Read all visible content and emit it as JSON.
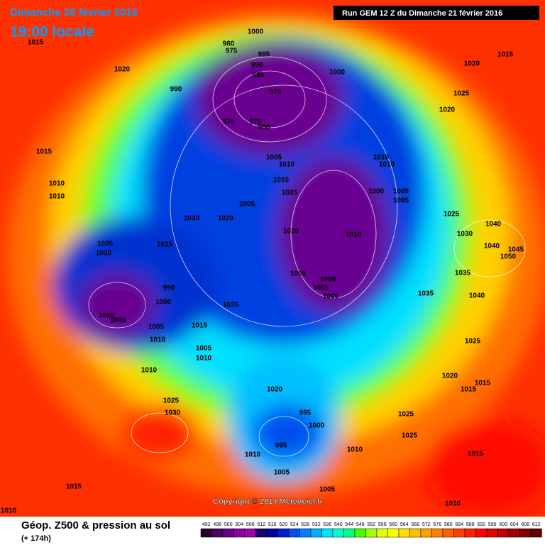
{
  "header": {
    "date": "Dimanche 28 février 2016",
    "time": "19:00 locale",
    "run": "Run GEM 12 Z du Dimanche 21 février 2016"
  },
  "copyright": "Copyright © 2014 Meteociel.fr",
  "footer": {
    "title": "Géop. Z500 & pression au sol",
    "lead": "(+ 174h)"
  },
  "scale": {
    "values": [
      492,
      496,
      500,
      504,
      508,
      512,
      516,
      520,
      524,
      528,
      532,
      536,
      540,
      544,
      548,
      552,
      556,
      560,
      564,
      568,
      572,
      576,
      580,
      584,
      588,
      592,
      596,
      600,
      604,
      608,
      612
    ],
    "colors": [
      "#2a0030",
      "#4b0060",
      "#6a0080",
      "#8a00a0",
      "#a000b0",
      "#1a0070",
      "#0000a0",
      "#0020d0",
      "#0050f0",
      "#0080ff",
      "#00b0ff",
      "#00e0ff",
      "#00ffd0",
      "#00ff80",
      "#40ff00",
      "#a0ff00",
      "#e0ff00",
      "#ffff00",
      "#ffe000",
      "#ffc000",
      "#ffa000",
      "#ff8000",
      "#ff6000",
      "#ff4000",
      "#ff2000",
      "#ff0000",
      "#e00000",
      "#c00000",
      "#a00000",
      "#800000",
      "#600000"
    ]
  },
  "isobar_labels": [
    1015,
    1000,
    980,
    975,
    995,
    990,
    985,
    1000,
    975,
    990,
    970,
    975,
    980,
    1020,
    1015,
    1020,
    1025,
    1020,
    1015,
    1005,
    1010,
    1010,
    1010,
    1010,
    1010,
    1015,
    1025,
    1000,
    1005,
    1005,
    1005,
    1020,
    1030,
    1025,
    1020,
    1010,
    1030,
    1040,
    1035,
    1030,
    1025,
    1040,
    1045,
    1050,
    1005,
    1000,
    1035,
    990,
    1005,
    1000,
    1035,
    1040,
    1000,
    1000,
    1005,
    1005,
    1015,
    1035,
    1010,
    1025,
    1005,
    1010,
    1010,
    1020,
    1015,
    1015,
    1020,
    1025,
    1030,
    995,
    1025,
    1000,
    1025,
    995,
    1010,
    1010,
    1015,
    1005,
    1015,
    1005,
    1010,
    1010
  ]
}
